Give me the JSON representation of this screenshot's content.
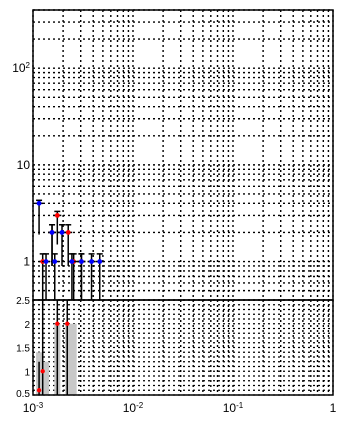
{
  "chart_data": [
    {
      "type": "scatter",
      "panel": "top",
      "xscale": "log",
      "yscale": "log",
      "xlim": [
        0.001,
        1
      ],
      "ylim": [
        0.4,
        400
      ],
      "grid": true,
      "ytick_labels": [
        {
          "value": 1,
          "label": "1"
        },
        {
          "value": 10,
          "label": "10"
        },
        {
          "value": 100,
          "label": "10^2"
        }
      ],
      "series": [
        {
          "color": "#ff0000",
          "points": [
            {
              "x": 0.00125,
              "y": 1.0,
              "err": [
                0.3,
                1.2
              ]
            },
            {
              "x": 0.00155,
              "y": 2.0,
              "err": [
                0.9,
                2.4
              ]
            },
            {
              "x": 0.00175,
              "y": 3.0,
              "err": [
                1.5,
                3.3
              ]
            },
            {
              "x": 0.00225,
              "y": 2.0,
              "err": [
                0.9,
                2.4
              ]
            },
            {
              "x": 0.00255,
              "y": 1.0,
              "err": [
                0.3,
                1.2
              ]
            },
            {
              "x": 0.00305,
              "y": 1.0,
              "err": [
                0.3,
                1.2
              ]
            }
          ]
        },
        {
          "color": "#0000ff",
          "points": [
            {
              "x": 0.00115,
              "y": 4.0,
              "err": [
                1.9,
                4.3
              ]
            },
            {
              "x": 0.00135,
              "y": 1.0,
              "err": [
                0.3,
                1.2
              ]
            },
            {
              "x": 0.00155,
              "y": 2.0,
              "err": [
                0.9,
                2.4
              ]
            },
            {
              "x": 0.00165,
              "y": 1.0,
              "err": [
                0.3,
                1.2
              ]
            },
            {
              "x": 0.00195,
              "y": 2.0,
              "err": [
                0.9,
                2.4
              ]
            },
            {
              "x": 0.00245,
              "y": 1.0,
              "err": [
                0.3,
                1.2
              ]
            },
            {
              "x": 0.00305,
              "y": 1.0,
              "err": [
                0.3,
                1.2
              ]
            },
            {
              "x": 0.00385,
              "y": 1.0,
              "err": [
                0.3,
                1.2
              ]
            },
            {
              "x": 0.00465,
              "y": 1.0,
              "err": [
                0.3,
                1.2
              ]
            }
          ]
        }
      ]
    },
    {
      "type": "scatter",
      "panel": "ratio",
      "xscale": "log",
      "yscale": "linear",
      "xlim": [
        0.001,
        1
      ],
      "ylim": [
        0.5,
        2.5
      ],
      "grid": true,
      "xtick_labels": [
        {
          "value": 0.001,
          "label": "10^-3"
        },
        {
          "value": 0.01,
          "label": "10^-2"
        },
        {
          "value": 0.1,
          "label": "10^-1"
        },
        {
          "value": 1,
          "label": "1"
        }
      ],
      "ytick_labels": [
        {
          "value": 0.5,
          "label": "0.5"
        },
        {
          "value": 1,
          "label": "1"
        },
        {
          "value": 1.5,
          "label": "1.5"
        },
        {
          "value": 2,
          "label": "2"
        },
        {
          "value": 2.5,
          "label": "2.5"
        }
      ],
      "bands": [
        {
          "x": 0.00115,
          "ylow": 0.5,
          "yhigh": 1.4
        },
        {
          "x": 0.00135,
          "ylow": 0.5,
          "yhigh": 1.2
        },
        {
          "x": 0.00175,
          "ylow": 0.5,
          "yhigh": 2.0
        },
        {
          "x": 0.00225,
          "ylow": 0.5,
          "yhigh": 2.0
        },
        {
          "x": 0.00255,
          "ylow": 0.5,
          "yhigh": 2.0
        }
      ],
      "series": [
        {
          "color": "#ff0000",
          "points": [
            {
              "x": 0.00125,
              "y": 1.0,
              "err": [
                0.5,
                2.5
              ]
            },
            {
              "x": 0.00175,
              "y": 2.0,
              "err": [
                0.5,
                2.5
              ]
            },
            {
              "x": 0.0022,
              "y": 2.0,
              "err": [
                0.5,
                2.5
              ]
            },
            {
              "x": 0.00115,
              "y": 0.6,
              "err": [
                0.5,
                1.2
              ]
            }
          ]
        }
      ]
    }
  ]
}
